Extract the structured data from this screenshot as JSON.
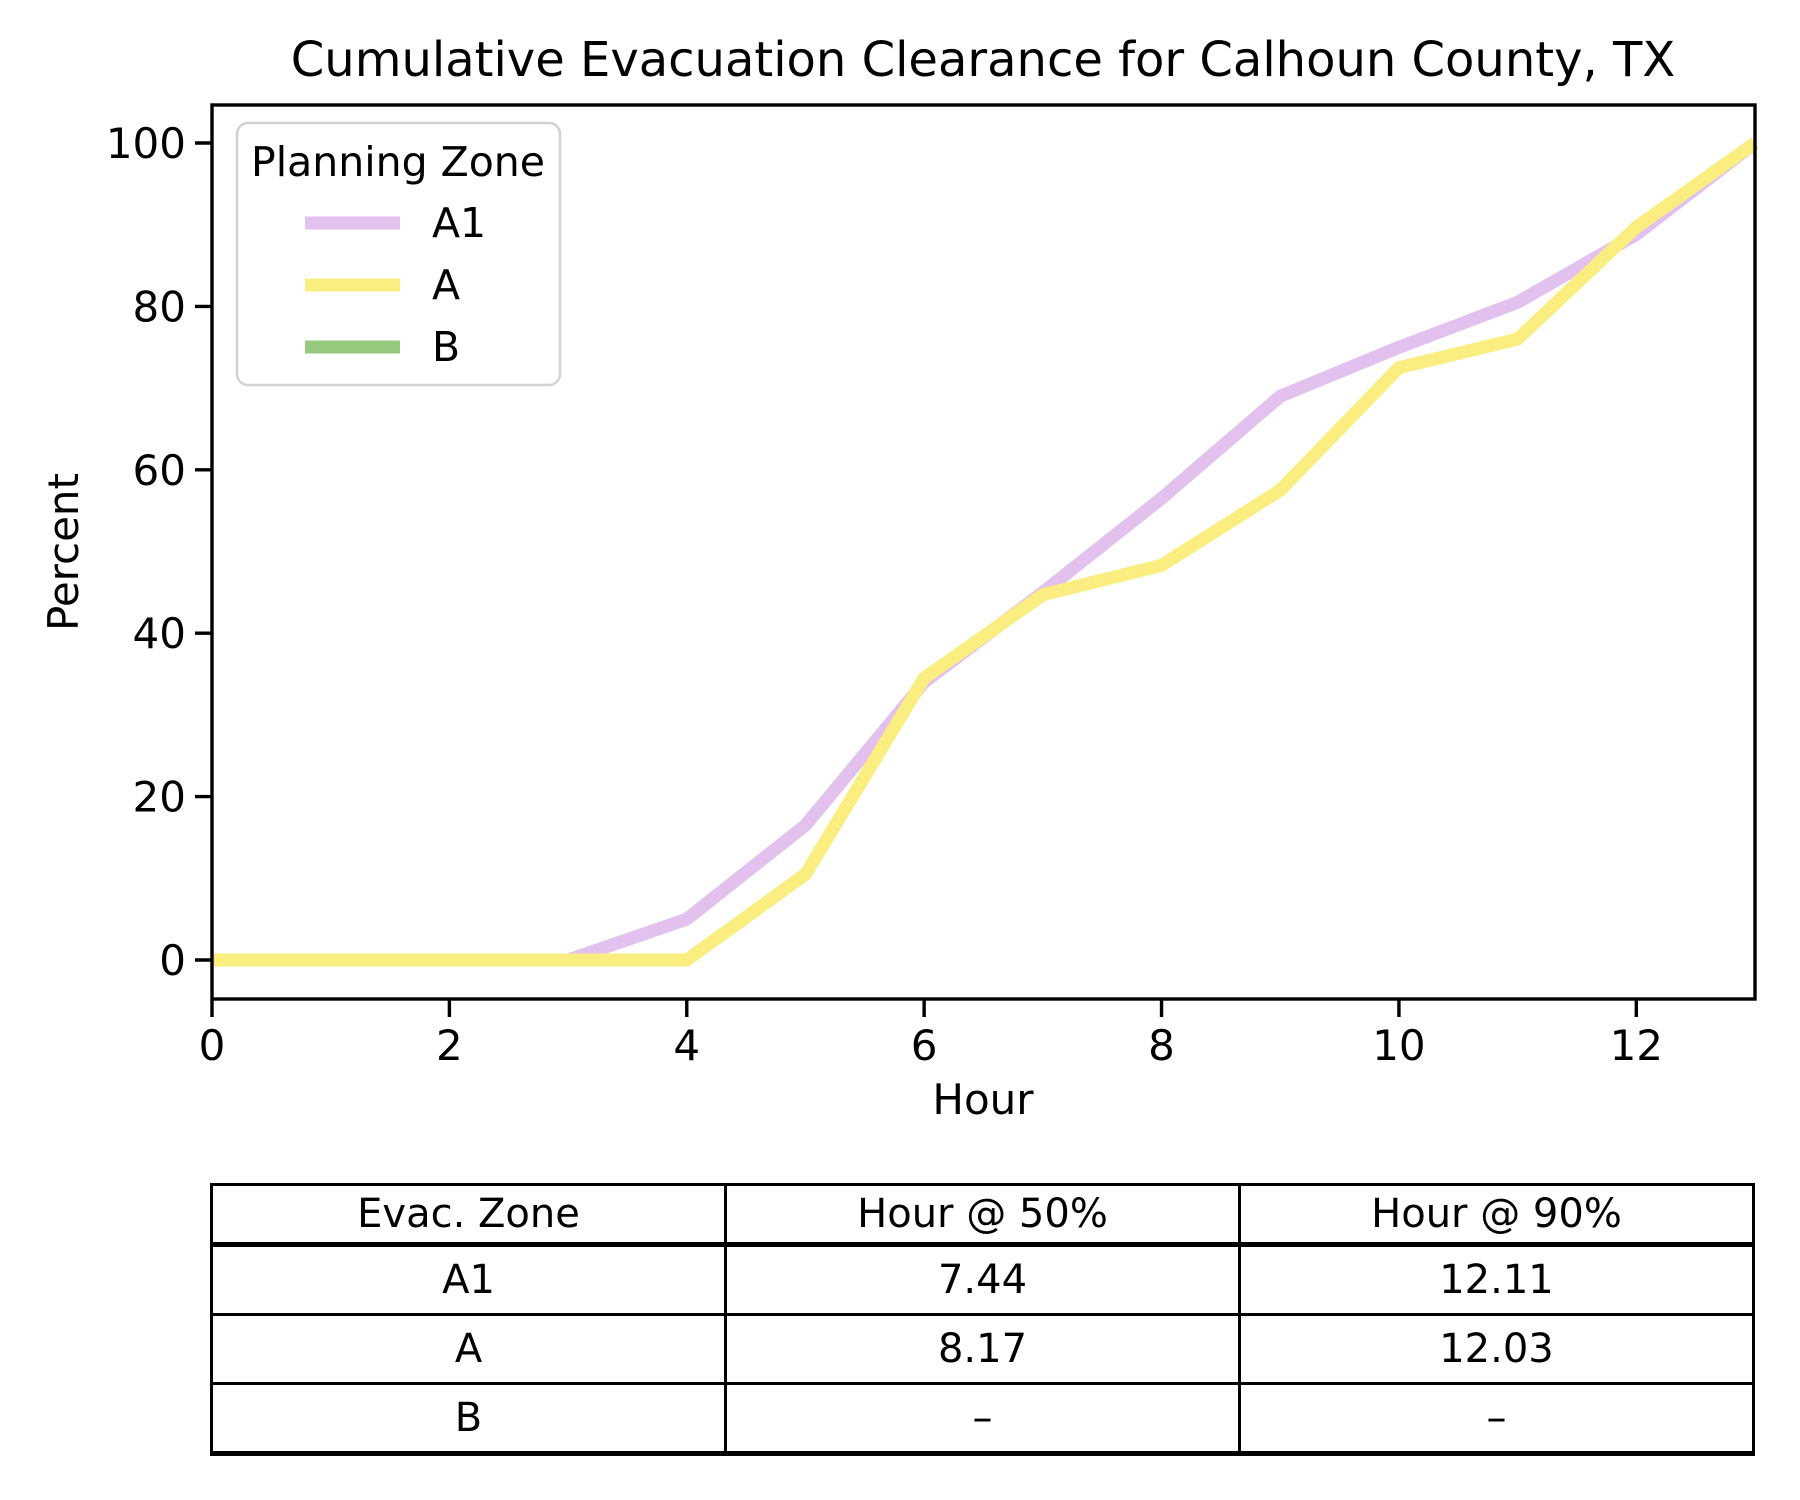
{
  "chart_data": {
    "type": "line",
    "title": "Cumulative Evacuation Clearance for Calhoun County, TX",
    "xlabel": "Hour",
    "ylabel": "Percent",
    "xlim": [
      0,
      13
    ],
    "ylim": [
      -5,
      105
    ],
    "xticks": [
      0,
      2,
      4,
      6,
      8,
      10,
      12
    ],
    "yticks": [
      0,
      20,
      40,
      60,
      80,
      100
    ],
    "grid": false,
    "legend_title": "Planning Zone",
    "legend_position": "upper-left",
    "x": [
      0,
      1,
      2,
      3,
      4,
      5,
      6,
      7,
      8,
      9,
      10,
      11,
      12,
      13
    ],
    "series": [
      {
        "name": "A1",
        "color": "#e2c1ef",
        "values": [
          0,
          0,
          0,
          0,
          5,
          16.5,
          34,
          45,
          56.5,
          69,
          75,
          80.5,
          88.8,
          100
        ]
      },
      {
        "name": "A",
        "color": "#f9ee7f",
        "values": [
          0,
          0,
          0,
          0,
          0,
          10.5,
          34.5,
          44.7,
          48.3,
          57.5,
          72.5,
          76,
          89.7,
          100
        ]
      },
      {
        "name": "B",
        "color": "#94c97e",
        "values": null
      }
    ],
    "line_width": 13
  },
  "results_table": {
    "headers": [
      "Evac. Zone",
      "Hour @ 50%",
      "Hour @ 90%"
    ],
    "rows": [
      [
        "A1",
        "7.44",
        "12.11"
      ],
      [
        "A",
        "8.17",
        "12.03"
      ],
      [
        "B",
        "–",
        "–"
      ]
    ]
  }
}
